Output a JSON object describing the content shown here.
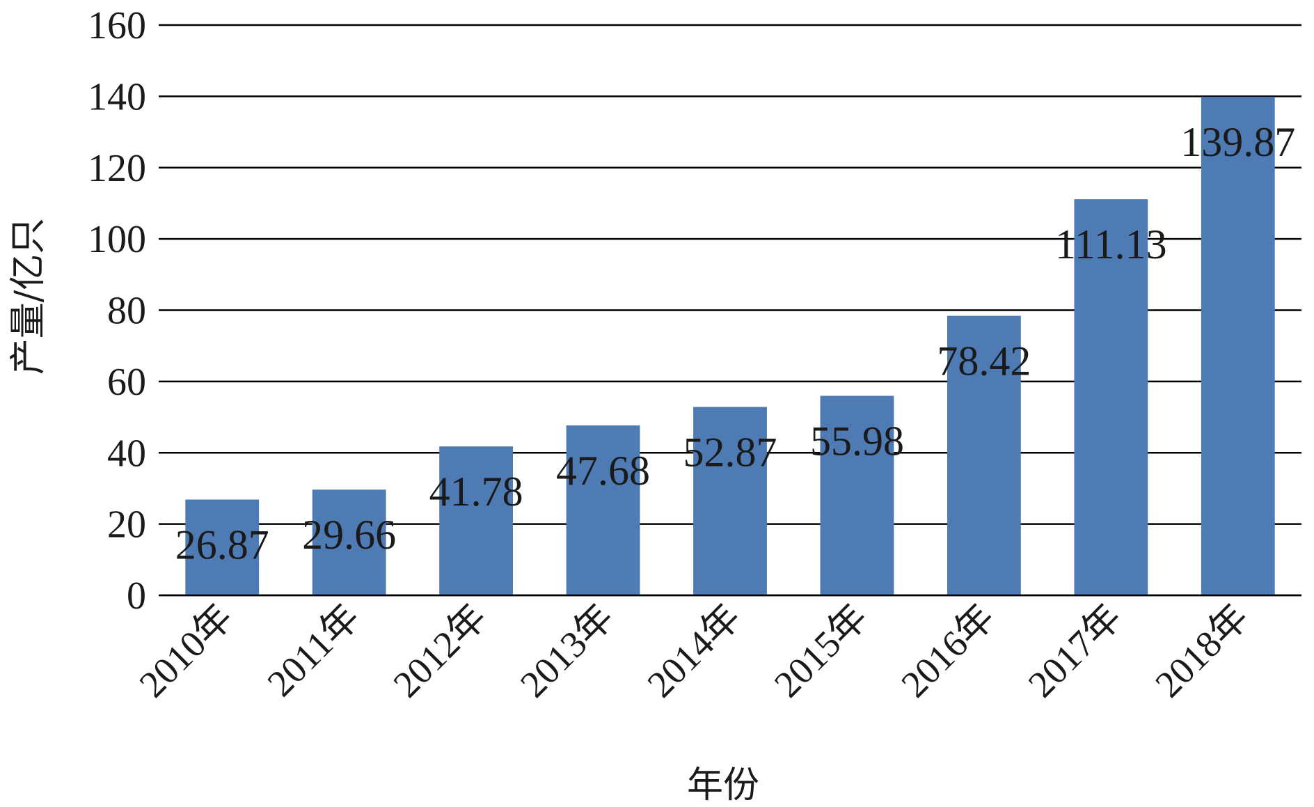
{
  "chart_data": {
    "type": "bar",
    "categories": [
      "2010年",
      "2011年",
      "2012年",
      "2013年",
      "2014年",
      "2015年",
      "2016年",
      "2017年",
      "2018年"
    ],
    "values": [
      26.87,
      29.66,
      41.78,
      47.68,
      52.87,
      55.98,
      78.42,
      111.13,
      139.87
    ],
    "data_labels": [
      "26.87",
      "29.66",
      "41.78",
      "47.68",
      "52.87",
      "55.98",
      "78.42",
      "111.13",
      "139.87"
    ],
    "xlabel": "年份",
    "ylabel": "产量/亿只",
    "ylim": [
      0,
      160
    ],
    "yticks": [
      0,
      20,
      40,
      60,
      80,
      100,
      120,
      140,
      160
    ],
    "grid": true,
    "legend": "none",
    "bar_color": "#4f7bb5"
  }
}
